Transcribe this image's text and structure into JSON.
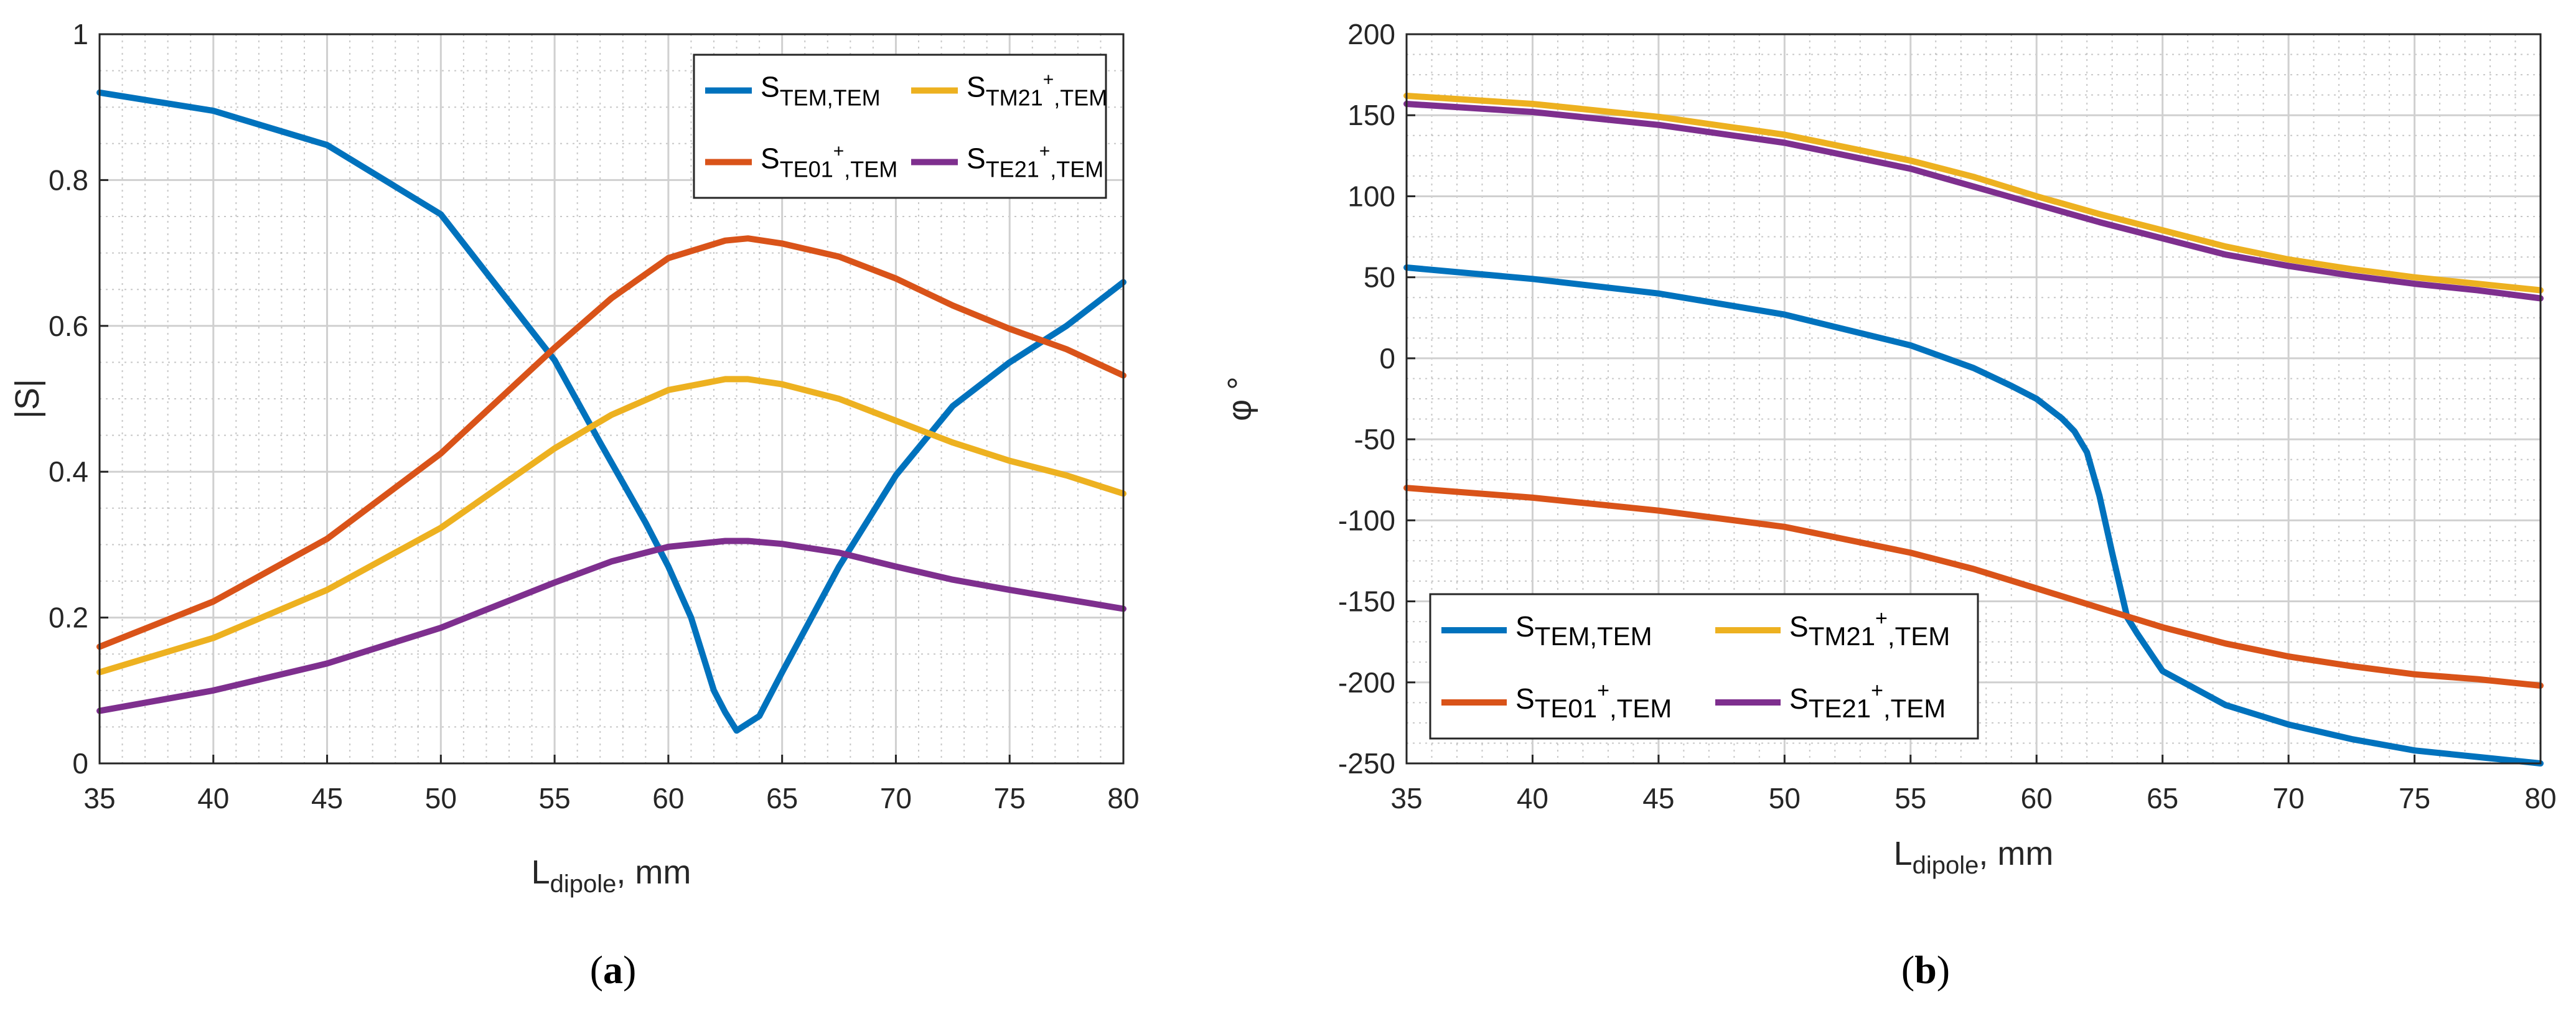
{
  "chart_data": [
    {
      "type": "line",
      "panel_label": "(a)",
      "panel_letter": "a",
      "xlabel": {
        "main": "L",
        "sub": "dipole",
        "rest": ", mm"
      },
      "ylabel": "|S|",
      "xlim": [
        35,
        80
      ],
      "ylim": [
        0,
        1
      ],
      "xticks": [
        "35",
        "40",
        "45",
        "50",
        "55",
        "60",
        "65",
        "70",
        "75",
        "80"
      ],
      "yticks": [
        "0",
        "0.2",
        "0.4",
        "0.6",
        "0.8",
        "1"
      ],
      "grid": true,
      "minor_grid": true,
      "legend_position": "top-right",
      "series": [
        {
          "name": "S_TEM,TEM",
          "label": {
            "main": "S",
            "sub": "TEM,TEM",
            "sup": "",
            "sub2": ""
          },
          "color": "#0072BD",
          "x": [
            35,
            40,
            45,
            50,
            55,
            57,
            59,
            60,
            61,
            62,
            62.5,
            63,
            64,
            65,
            67.5,
            70,
            72.5,
            75,
            77.5,
            80
          ],
          "y": [
            0.92,
            0.895,
            0.848,
            0.753,
            0.553,
            0.44,
            0.33,
            0.27,
            0.2,
            0.1,
            0.07,
            0.045,
            0.065,
            0.125,
            0.27,
            0.395,
            0.49,
            0.55,
            0.6,
            0.66
          ]
        },
        {
          "name": "S_TM21+,TEM",
          "label": {
            "main": "S",
            "sub": "TM21",
            "sup": "+",
            "sub2": ",TEM"
          },
          "color": "#EDB120",
          "x": [
            35,
            40,
            45,
            50,
            55,
            57.5,
            60,
            62.5,
            63.5,
            65,
            67.5,
            70,
            72.5,
            75,
            77.5,
            80
          ],
          "y": [
            0.125,
            0.172,
            0.238,
            0.323,
            0.432,
            0.478,
            0.512,
            0.527,
            0.527,
            0.52,
            0.5,
            0.47,
            0.44,
            0.415,
            0.395,
            0.37
          ]
        },
        {
          "name": "S_TE01+,TEM",
          "label": {
            "main": "S",
            "sub": "TE01",
            "sup": "+",
            "sub2": ",TEM"
          },
          "color": "#D95319",
          "x": [
            35,
            40,
            45,
            50,
            55,
            57.5,
            60,
            62.5,
            63.5,
            65,
            67.5,
            70,
            72.5,
            75,
            77.5,
            80
          ],
          "y": [
            0.16,
            0.222,
            0.308,
            0.425,
            0.57,
            0.638,
            0.693,
            0.717,
            0.72,
            0.713,
            0.695,
            0.665,
            0.628,
            0.596,
            0.568,
            0.532
          ]
        },
        {
          "name": "S_TE21+,TEM",
          "label": {
            "main": "S",
            "sub": "TE21",
            "sup": "+",
            "sub2": ",TEM"
          },
          "color": "#7E2F8E",
          "x": [
            35,
            40,
            45,
            50,
            55,
            57.5,
            60,
            62.5,
            63.5,
            65,
            67.5,
            70,
            72.5,
            75,
            77.5,
            80
          ],
          "y": [
            0.072,
            0.1,
            0.137,
            0.186,
            0.248,
            0.277,
            0.297,
            0.305,
            0.305,
            0.301,
            0.289,
            0.27,
            0.252,
            0.238,
            0.225,
            0.212
          ]
        }
      ]
    },
    {
      "type": "line",
      "panel_label": "(b)",
      "panel_letter": "b",
      "xlabel": {
        "main": "L",
        "sub": "dipole",
        "rest": ", mm"
      },
      "ylabel": "φ °",
      "xlim": [
        35,
        80
      ],
      "ylim": [
        -250,
        200
      ],
      "xticks": [
        "35",
        "40",
        "45",
        "50",
        "55",
        "60",
        "65",
        "70",
        "75",
        "80"
      ],
      "yticks": [
        "-250",
        "-200",
        "-150",
        "-100",
        "-50",
        "0",
        "50",
        "100",
        "150",
        "200"
      ],
      "grid": true,
      "minor_grid": true,
      "legend_position": "bottom-left",
      "series": [
        {
          "name": "S_TEM,TEM",
          "label": {
            "main": "S",
            "sub": "TEM,TEM",
            "sup": "",
            "sub2": ""
          },
          "color": "#0072BD",
          "x": [
            35,
            40,
            45,
            50,
            55,
            57.5,
            59,
            60,
            61,
            61.5,
            62,
            62.5,
            63,
            63.3,
            63.6,
            64,
            65,
            67.5,
            70,
            72.5,
            75,
            77.5,
            80
          ],
          "y": [
            56,
            49,
            40,
            27,
            8,
            -6,
            -17,
            -25,
            -37,
            -45,
            -58,
            -85,
            -120,
            -140,
            -160,
            -170,
            -193,
            -214,
            -226,
            -235,
            -242,
            -246,
            -250
          ]
        },
        {
          "name": "S_TM21+,TEM",
          "label": {
            "main": "S",
            "sub": "TM21",
            "sup": "+",
            "sub2": ",TEM"
          },
          "color": "#EDB120",
          "x": [
            35,
            40,
            45,
            50,
            55,
            57.5,
            60,
            62.5,
            65,
            67.5,
            70,
            72.5,
            75,
            77.5,
            80
          ],
          "y": [
            162,
            157,
            149,
            138,
            122,
            112,
            100,
            89,
            79,
            69,
            61,
            55,
            50,
            46,
            42
          ]
        },
        {
          "name": "S_TE01+,TEM",
          "label": {
            "main": "S",
            "sub": "TE01",
            "sup": "+",
            "sub2": ",TEM"
          },
          "color": "#D95319",
          "x": [
            35,
            40,
            45,
            50,
            55,
            57.5,
            60,
            62.5,
            65,
            67.5,
            70,
            72.5,
            75,
            77.5,
            80
          ],
          "y": [
            -80,
            -86,
            -94,
            -104,
            -120,
            -130,
            -142,
            -154,
            -166,
            -176,
            -184,
            -190,
            -195,
            -198,
            -202
          ]
        },
        {
          "name": "S_TE21+,TEM",
          "label": {
            "main": "S",
            "sub": "TE21",
            "sup": "+",
            "sub2": ",TEM"
          },
          "color": "#7E2F8E",
          "x": [
            35,
            40,
            45,
            50,
            55,
            57.5,
            60,
            62.5,
            65,
            67.5,
            70,
            72.5,
            75,
            77.5,
            80
          ],
          "y": [
            157,
            152,
            144,
            133,
            117,
            106,
            95,
            84,
            74,
            64,
            57,
            51,
            46,
            42,
            37
          ]
        }
      ]
    }
  ]
}
